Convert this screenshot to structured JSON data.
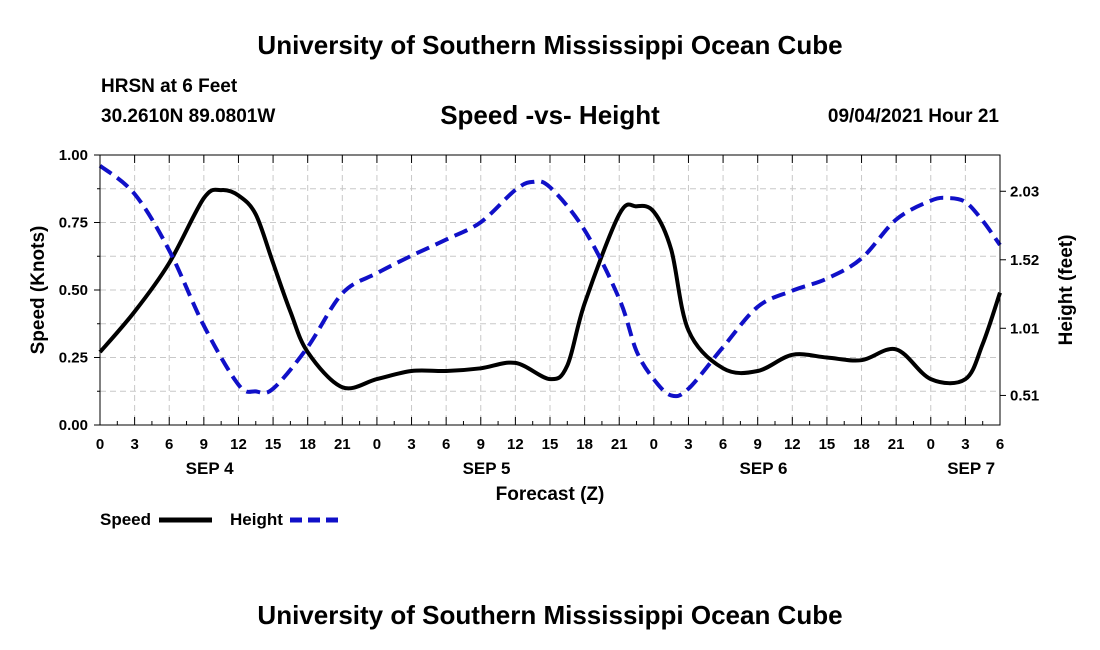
{
  "header": {
    "title_top": "University of Southern Mississippi Ocean Cube",
    "station": "HRSN at 6 Feet",
    "coords": "30.2610N  89.0801W",
    "timestamp": "09/04/2021 Hour 21",
    "title_bottom": "University of Southern Mississippi Ocean Cube"
  },
  "chart_data": {
    "type": "line",
    "title": "Speed -vs- Height",
    "xlabel": "Forecast (Z)",
    "ylabel_left": "Speed (Knots)",
    "ylabel_right": "Height (feet)",
    "grid": true,
    "x_range_hours": [
      0,
      78
    ],
    "ylim_left": [
      0,
      1.0
    ],
    "ylim_right": [
      0.29,
      2.3
    ],
    "left_ticks": [
      0.0,
      0.25,
      0.5,
      0.75,
      1.0
    ],
    "left_tick_labels": [
      "0.00",
      "0.25",
      "0.50",
      "0.75",
      "1.00"
    ],
    "right_ticks": [
      0.51,
      1.01,
      1.52,
      2.03
    ],
    "right_tick_labels": [
      "0.51",
      "1.01",
      "1.52",
      "2.03"
    ],
    "x_tick_labels": [
      "0",
      "3",
      "6",
      "9",
      "12",
      "15",
      "18",
      "21",
      "0",
      "3",
      "6",
      "9",
      "12",
      "15",
      "18",
      "21",
      "0",
      "3",
      "6",
      "9",
      "12",
      "15",
      "18",
      "21",
      "0",
      "3",
      "6"
    ],
    "day_labels": [
      {
        "label": "SEP 4",
        "hour": 9.5
      },
      {
        "label": "SEP 5",
        "hour": 33.5
      },
      {
        "label": "SEP 6",
        "hour": 57.5
      },
      {
        "label": "SEP 7",
        "hour": 75.5
      }
    ],
    "series": [
      {
        "name": "Speed",
        "axis": "left",
        "color": "#000000",
        "dash": "solid",
        "x": [
          0,
          3,
          6,
          9,
          10.5,
          12,
          13.5,
          15,
          16.5,
          18,
          21,
          24,
          27,
          30,
          33,
          36,
          39,
          40.5,
          42,
          45,
          46.5,
          48,
          49.5,
          51,
          54,
          57,
          60,
          63,
          66,
          69,
          72,
          75,
          76.5,
          78
        ],
        "y": [
          0.27,
          0.42,
          0.6,
          0.84,
          0.87,
          0.85,
          0.78,
          0.6,
          0.42,
          0.27,
          0.14,
          0.17,
          0.2,
          0.2,
          0.21,
          0.23,
          0.17,
          0.22,
          0.45,
          0.78,
          0.81,
          0.79,
          0.65,
          0.35,
          0.21,
          0.2,
          0.26,
          0.25,
          0.24,
          0.28,
          0.17,
          0.17,
          0.3,
          0.49
        ]
      },
      {
        "name": "Height",
        "axis": "right",
        "color": "#1010c8",
        "dash": "dashed",
        "x": [
          0,
          3,
          6,
          9,
          12,
          13.5,
          15,
          18,
          21,
          24,
          27,
          30,
          33,
          36,
          37.5,
          39,
          42,
          45,
          46.5,
          48,
          49.5,
          51,
          54,
          57,
          60,
          63,
          66,
          69,
          72,
          73.5,
          75,
          76.5,
          78
        ],
        "y": [
          2.22,
          2.01,
          1.59,
          1.03,
          0.59,
          0.54,
          0.56,
          0.87,
          1.27,
          1.42,
          1.55,
          1.67,
          1.8,
          2.04,
          2.1,
          2.06,
          1.74,
          1.23,
          0.84,
          0.63,
          0.51,
          0.56,
          0.87,
          1.17,
          1.29,
          1.38,
          1.53,
          1.82,
          1.96,
          1.98,
          1.95,
          1.81,
          1.63
        ]
      }
    ],
    "legend": [
      "Speed",
      "Height"
    ]
  }
}
